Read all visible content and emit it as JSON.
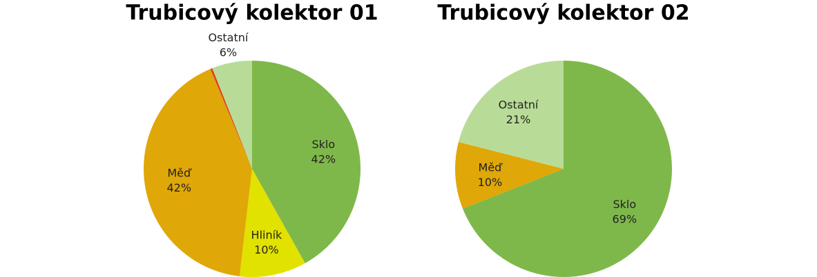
{
  "chart_data": [
    {
      "type": "pie",
      "title": "Trubicový kolektor 01",
      "categories": [
        "Sklo",
        "Hliník",
        "Měď",
        null,
        "Ostatní"
      ],
      "values": [
        42,
        10,
        42,
        0.3,
        6
      ],
      "value_labels": [
        "42%",
        "10%",
        "42%",
        null,
        "6%"
      ],
      "colors": [
        "#7fb84a",
        "#e2e200",
        "#e0a708",
        "#e0401a",
        "#b8dc98"
      ]
    },
    {
      "type": "pie",
      "title": "Trubicový kolektor 02",
      "categories": [
        "Sklo",
        "Měď",
        "Ostatní"
      ],
      "values": [
        69,
        10,
        21
      ],
      "value_labels": [
        "69%",
        "10%",
        "21%"
      ],
      "colors": [
        "#7fb84a",
        "#e0a708",
        "#b8dc98"
      ]
    }
  ]
}
